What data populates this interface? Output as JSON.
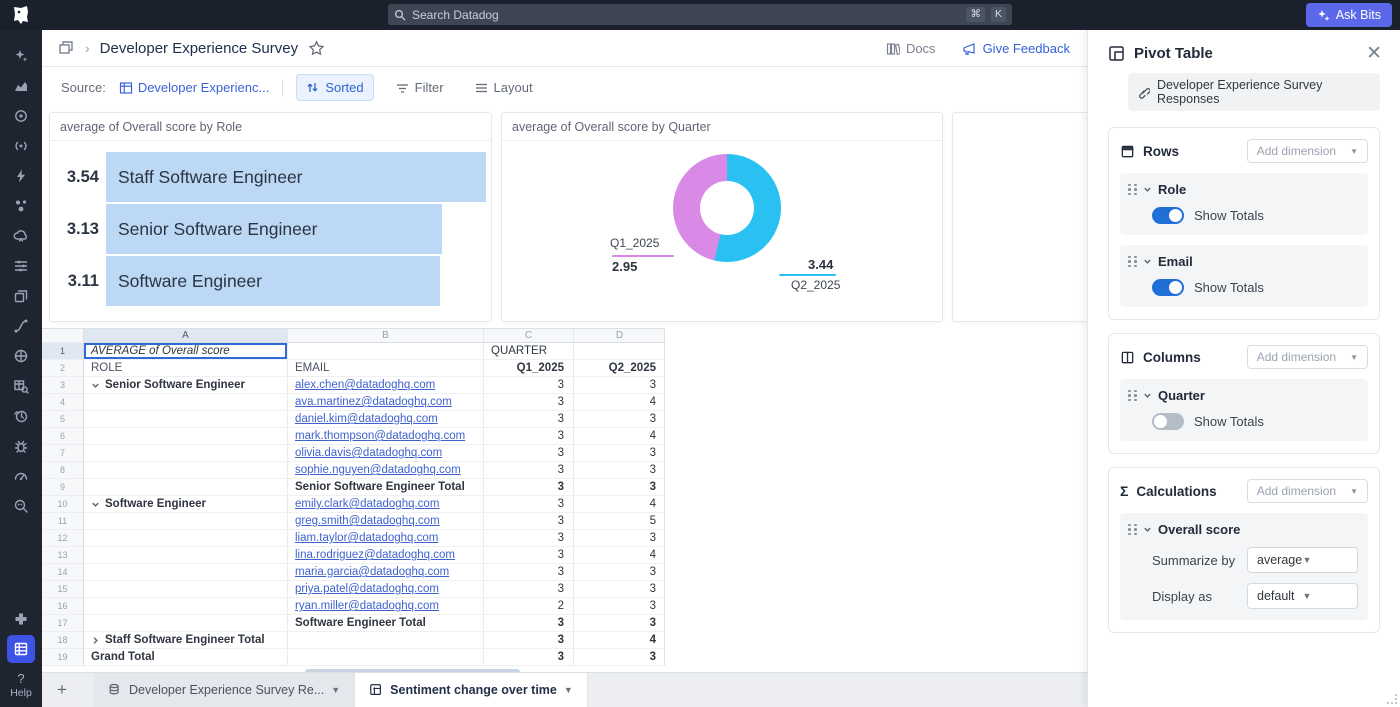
{
  "colors": {
    "accent_blue": "#2e66d0",
    "toggle_on": "#1f6fd6",
    "link_blue": "#3f62cf",
    "bar_fill": "#bdd8f5",
    "donut_q1": "#d98ae6",
    "donut_q2": "#2ac0f2",
    "ask_bits_bg": "#5c68ea"
  },
  "topbar": {
    "search_placeholder": "Search Datadog",
    "shortcut_keys": [
      "⌘",
      "K"
    ],
    "ask_bits_label": "Ask Bits"
  },
  "header": {
    "title": "Developer Experience Survey",
    "docs_label": "Docs",
    "feedback_label": "Give Feedback"
  },
  "toolbar": {
    "source_label": "Source:",
    "source_name": "Developer Experienc...",
    "sorted_label": "Sorted",
    "filter_label": "Filter",
    "layout_label": "Layout"
  },
  "chart_data": [
    {
      "type": "bar",
      "title": "average of Overall score by Role",
      "orientation": "horizontal",
      "categories": [
        "Staff Software Engineer",
        "Senior Software Engineer",
        "Software Engineer"
      ],
      "values": [
        3.54,
        3.13,
        3.11
      ],
      "xlim": [
        0,
        3.54
      ],
      "bar_color": "#bdd8f5"
    },
    {
      "type": "pie",
      "title": "average of Overall score by Quarter",
      "donut": true,
      "categories": [
        "Q1_2025",
        "Q2_2025"
      ],
      "values": [
        2.95,
        3.44
      ],
      "colors": [
        "#d98ae6",
        "#2ac0f2"
      ],
      "labels_position": "outside-leader-lines"
    }
  ],
  "sheet": {
    "column_letters": [
      "A",
      "B",
      "C",
      "D"
    ],
    "selected_cell": "A1",
    "rows": [
      {
        "n": "1",
        "a": "AVERAGE of Overall score",
        "a_italic": true,
        "a_selected": true,
        "c_left": "QUARTER"
      },
      {
        "n": "2",
        "a": "ROLE",
        "b": "EMAIL",
        "c": "Q1_2025",
        "d": "Q2_2025",
        "colhead": true
      },
      {
        "n": "3",
        "a": "Senior Software Engineer",
        "a_bold": true,
        "a_chevron": "down",
        "b": "alex.chen@datadoghq.com",
        "b_link": true,
        "c": "3",
        "d": "3"
      },
      {
        "n": "4",
        "b": "ava.martinez@datadoghq.com",
        "b_link": true,
        "c": "3",
        "d": "4"
      },
      {
        "n": "5",
        "b": "daniel.kim@datadoghq.com",
        "b_link": true,
        "c": "3",
        "d": "3"
      },
      {
        "n": "6",
        "b": "mark.thompson@datadoghq.com",
        "b_link": true,
        "c": "3",
        "d": "4"
      },
      {
        "n": "7",
        "b": "olivia.davis@datadoghq.com",
        "b_link": true,
        "c": "3",
        "d": "3"
      },
      {
        "n": "8",
        "b": "sophie.nguyen@datadoghq.com",
        "b_link": true,
        "c": "3",
        "d": "3"
      },
      {
        "n": "9",
        "b": "Senior Software Engineer Total",
        "b_bold": true,
        "c": "3",
        "d": "3",
        "num_bold": true
      },
      {
        "n": "10",
        "a": "Software Engineer",
        "a_bold": true,
        "a_chevron": "down",
        "b": "emily.clark@datadoghq.com",
        "b_link": true,
        "c": "3",
        "d": "4"
      },
      {
        "n": "11",
        "b": "greg.smith@datadoghq.com",
        "b_link": true,
        "c": "3",
        "d": "5"
      },
      {
        "n": "12",
        "b": "liam.taylor@datadoghq.com",
        "b_link": true,
        "c": "3",
        "d": "3"
      },
      {
        "n": "13",
        "b": "lina.rodriguez@datadoghq.com",
        "b_link": true,
        "c": "3",
        "d": "4"
      },
      {
        "n": "14",
        "b": "maria.garcia@datadoghq.com",
        "b_link": true,
        "c": "3",
        "d": "3"
      },
      {
        "n": "15",
        "b": "priya.patel@datadoghq.com",
        "b_link": true,
        "c": "3",
        "d": "3"
      },
      {
        "n": "16",
        "b": "ryan.miller@datadoghq.com",
        "b_link": true,
        "c": "2",
        "d": "3"
      },
      {
        "n": "17",
        "b": "Software Engineer Total",
        "b_bold": true,
        "c": "3",
        "d": "3",
        "num_bold": true
      },
      {
        "n": "18",
        "a": "Staff Software Engineer Total",
        "a_bold": true,
        "a_chevron": "right",
        "c": "3",
        "d": "4",
        "num_bold": true
      },
      {
        "n": "19",
        "a": "Grand Total",
        "a_bold": true,
        "c": "3",
        "d": "3",
        "num_bold": true
      }
    ]
  },
  "tabs": {
    "plus_label": "+",
    "items": [
      {
        "label": "Developer Experience Survey Re...",
        "icon": "database-icon",
        "active": false
      },
      {
        "label": "Sentiment change over time",
        "icon": "pivot-icon",
        "active": true
      }
    ]
  },
  "panel": {
    "title": "Pivot Table",
    "source_link": "Developer Experience Survey Responses",
    "sections": [
      {
        "icon": "rows-icon",
        "label": "Rows",
        "add_label": "Add dimension",
        "items": [
          {
            "name": "Role",
            "toggle_on": true,
            "toggle_label": "Show Totals"
          },
          {
            "name": "Email",
            "toggle_on": true,
            "toggle_label": "Show Totals"
          }
        ]
      },
      {
        "icon": "columns-icon",
        "label": "Columns",
        "add_label": "Add dimension",
        "items": [
          {
            "name": "Quarter",
            "toggle_on": false,
            "toggle_label": "Show Totals"
          }
        ]
      },
      {
        "icon": "sigma-icon",
        "label": "Calculations",
        "add_label": "Add dimension",
        "items": [
          {
            "name": "Overall score",
            "fields": [
              {
                "label": "Summarize by",
                "value": "average"
              },
              {
                "label": "Display as",
                "value": "default"
              }
            ]
          }
        ]
      }
    ]
  },
  "rail": {
    "top_icons": [
      "bits-ai-icon",
      "metrics-icon",
      "apm-icon",
      "rum-icon",
      "events-icon",
      "infrastructure-icon",
      "cloud-icon",
      "logs-icon",
      "containers-icon",
      "pipelines-icon",
      "security-icon",
      "table-search-icon",
      "time-restore-icon",
      "error-tracking-icon",
      "gauge-icon",
      "watchdog-icon"
    ],
    "bottom_icons": [
      "integrations-icon",
      "sheets-icon"
    ],
    "active_icon": "sheets-icon",
    "help_icon": "?",
    "help_label": "Help"
  }
}
